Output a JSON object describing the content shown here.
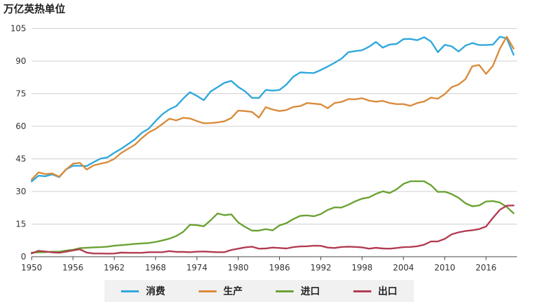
{
  "chart_data": {
    "type": "line",
    "unit_label": "万亿英热单位",
    "x": [
      1950,
      1951,
      1952,
      1953,
      1954,
      1955,
      1956,
      1957,
      1958,
      1959,
      1960,
      1961,
      1962,
      1963,
      1964,
      1965,
      1966,
      1967,
      1968,
      1969,
      1970,
      1971,
      1972,
      1973,
      1974,
      1975,
      1976,
      1977,
      1978,
      1979,
      1980,
      1981,
      1982,
      1983,
      1984,
      1985,
      1986,
      1987,
      1988,
      1989,
      1990,
      1991,
      1992,
      1993,
      1994,
      1995,
      1996,
      1997,
      1998,
      1999,
      2000,
      2001,
      2002,
      2003,
      2004,
      2005,
      2006,
      2007,
      2008,
      2009,
      2010,
      2011,
      2012,
      2013,
      2014,
      2015,
      2016,
      2017,
      2018,
      2019,
      2020
    ],
    "x_ticks": [
      1950,
      1956,
      1962,
      1968,
      1974,
      1980,
      1986,
      1992,
      1998,
      2004,
      2010,
      2016
    ],
    "y_ticks": [
      0,
      15,
      30,
      45,
      60,
      75,
      90,
      105
    ],
    "ylim": [
      0,
      108
    ],
    "xlim": [
      1950,
      2020.5
    ],
    "grid": "horizontal",
    "legend_position": "bottom",
    "series": [
      {
        "name": "消费",
        "color": "#2fa8dc",
        "values": [
          34.6,
          37.3,
          37.0,
          37.9,
          36.6,
          40.2,
          41.8,
          41.8,
          41.7,
          43.5,
          45.1,
          45.7,
          47.8,
          49.6,
          51.8,
          54.0,
          57.0,
          58.9,
          62.4,
          65.6,
          67.8,
          69.3,
          72.7,
          75.7,
          74.0,
          72.0,
          76.0,
          78.0,
          80.0,
          80.9,
          78.1,
          76.1,
          73.1,
          73.0,
          76.7,
          76.4,
          76.7,
          79.2,
          82.8,
          84.8,
          84.6,
          84.5,
          85.9,
          87.5,
          89.2,
          91.1,
          94.1,
          94.6,
          95.0,
          96.6,
          98.8,
          96.2,
          97.6,
          97.9,
          100.1,
          100.2,
          99.6,
          101.0,
          99.0,
          94.1,
          97.5,
          96.8,
          94.4,
          97.1,
          98.3,
          97.4,
          97.4,
          97.6,
          101.2,
          100.5,
          92.9
        ]
      },
      {
        "name": "生产",
        "color": "#d98b3a",
        "values": [
          35.5,
          38.8,
          38.0,
          38.3,
          36.8,
          40.1,
          42.8,
          43.2,
          40.1,
          42.0,
          42.8,
          43.5,
          45.0,
          47.7,
          49.6,
          51.5,
          54.5,
          57.2,
          58.8,
          61.1,
          63.5,
          62.7,
          63.9,
          63.6,
          62.4,
          61.4,
          61.5,
          61.8,
          62.3,
          63.8,
          67.2,
          67.0,
          66.6,
          64.0,
          68.8,
          67.7,
          67.0,
          67.5,
          68.9,
          69.3,
          70.7,
          70.4,
          70.1,
          68.3,
          70.7,
          71.2,
          72.5,
          72.4,
          72.9,
          71.8,
          71.3,
          71.7,
          70.7,
          70.2,
          70.2,
          69.4,
          70.7,
          71.4,
          73.2,
          72.7,
          74.8,
          78.0,
          79.2,
          81.7,
          87.6,
          88.2,
          84.1,
          87.9,
          95.7,
          101.2,
          95.7
        ]
      },
      {
        "name": "进口",
        "color": "#6aa232",
        "values": [
          1.9,
          2.0,
          2.1,
          2.3,
          2.3,
          2.8,
          3.2,
          3.9,
          4.1,
          4.3,
          4.4,
          4.6,
          5.1,
          5.3,
          5.6,
          5.9,
          6.1,
          6.3,
          6.8,
          7.5,
          8.3,
          9.5,
          11.4,
          14.7,
          14.5,
          14.0,
          16.8,
          19.9,
          19.1,
          19.5,
          15.8,
          13.7,
          12.0,
          12.0,
          12.7,
          12.1,
          14.4,
          15.4,
          17.3,
          18.8,
          19.0,
          18.6,
          19.6,
          21.5,
          22.7,
          22.6,
          23.9,
          25.5,
          26.7,
          27.3,
          28.9,
          30.1,
          29.3,
          31.0,
          33.5,
          34.7,
          34.7,
          34.7,
          32.9,
          29.8,
          29.9,
          28.8,
          27.1,
          24.6,
          23.2,
          23.6,
          25.4,
          25.6,
          24.9,
          22.9,
          20.0
        ]
      },
      {
        "name": "出口",
        "color": "#b23b52",
        "values": [
          1.5,
          2.7,
          2.4,
          2.0,
          1.8,
          2.3,
          2.9,
          3.4,
          1.9,
          1.5,
          1.5,
          1.4,
          1.5,
          1.9,
          1.8,
          1.8,
          1.8,
          2.1,
          2.1,
          2.1,
          2.6,
          2.2,
          2.2,
          2.1,
          2.3,
          2.4,
          2.2,
          2.1,
          2.1,
          3.1,
          3.7,
          4.3,
          4.6,
          3.7,
          3.8,
          4.2,
          4.0,
          3.8,
          4.4,
          4.7,
          4.8,
          5.1,
          5.0,
          4.2,
          4.0,
          4.5,
          4.6,
          4.5,
          4.3,
          3.7,
          4.1,
          3.8,
          3.7,
          4.0,
          4.4,
          4.5,
          4.8,
          5.5,
          7.0,
          7.0,
          8.2,
          10.3,
          11.2,
          11.8,
          12.2,
          12.7,
          13.9,
          17.9,
          21.6,
          23.5,
          23.6
        ]
      }
    ]
  }
}
